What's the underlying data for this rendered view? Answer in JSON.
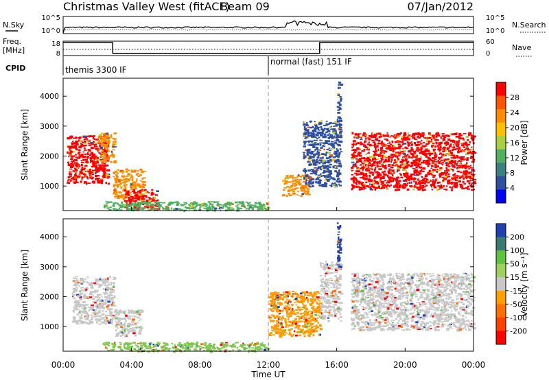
{
  "header": {
    "station": "Christmas Valley West (fitACF)",
    "beam": "Beam 09",
    "date": "07/Jan/2012"
  },
  "noise_panel": {
    "left_label": "N.Sky",
    "right_label": "N.Search",
    "left_ticks": [
      "10^5",
      "10^0"
    ],
    "right_ticks": [
      "10^5",
      "10^0"
    ]
  },
  "freq_panel": {
    "left_label_1": "Freq.",
    "left_label_2": "[MHz]",
    "left_ticks": [
      "18",
      "8"
    ],
    "right_label": "Nave",
    "right_ticks": [
      "60",
      "0"
    ],
    "freq_steps": [
      {
        "start_hour": 0.0,
        "end_hour": 2.9,
        "mhz": 17
      },
      {
        "start_hour": 2.9,
        "end_hour": 15.0,
        "mhz": 9.5
      },
      {
        "start_hour": 15.0,
        "end_hour": 24.0,
        "mhz": 17
      }
    ]
  },
  "cpid": {
    "label": "CPID",
    "segments": [
      {
        "start_hour": 0.0,
        "text": "themis 3300 IF"
      },
      {
        "start_hour": 12.0,
        "text": "normal (fast) 151 IF"
      }
    ]
  },
  "power_panel": {
    "ylabel": "Slant Range [km]",
    "yticks": [
      "4000",
      "3000",
      "2000",
      "1000"
    ],
    "colorbar_label": "Power [dB]",
    "colorbar_ticks": [
      "28",
      "24",
      "20",
      "16",
      "12",
      "8",
      "4"
    ],
    "colors": [
      "#ff0000",
      "#ff5500",
      "#ff8c00",
      "#ffc000",
      "#a8d040",
      "#50b060",
      "#3f7f7f",
      "#2f50a0",
      "#0000ff"
    ]
  },
  "velocity_panel": {
    "ylabel": "Slant Range [km]",
    "yticks": [
      "4000",
      "3000",
      "2000",
      "1000"
    ],
    "colorbar_label": "Velocity [m s⁻¹]",
    "colorbar_ticks": [
      "200",
      "100",
      "50",
      "15",
      "-15",
      "-50",
      "-100",
      "-200"
    ],
    "colors": [
      "#2040b0",
      "#3a7a70",
      "#60c040",
      "#a0d060",
      "#c8c8c8",
      "#ffa000",
      "#ff7000",
      "#ff4000",
      "#ff0000"
    ]
  },
  "x_axis": {
    "label": "Time UT",
    "ticks": [
      "00:00",
      "04:00",
      "08:00",
      "12:00",
      "16:00",
      "20:00",
      "00:00"
    ]
  },
  "chart_data": {
    "type": "heatmap",
    "title": "Christmas Valley West (fitACF) Beam 09 07/Jan/2012",
    "xlabel": "Time UT",
    "ylabel": "Slant Range [km]",
    "xlim_hours": [
      0,
      24
    ],
    "ylim_km": [
      180,
      4600
    ],
    "power_regions": [
      {
        "t0": 0.2,
        "t1": 2.6,
        "r0": 1100,
        "r1": 2700,
        "level": "red"
      },
      {
        "t0": 2.0,
        "t1": 3.0,
        "r0": 1800,
        "r1": 2800,
        "level": "orange"
      },
      {
        "t0": 2.9,
        "t1": 4.7,
        "r0": 600,
        "r1": 1600,
        "level": "orange"
      },
      {
        "t0": 3.5,
        "t1": 5.5,
        "r0": 250,
        "r1": 900,
        "level": "red"
      },
      {
        "t0": 2.3,
        "t1": 12.0,
        "r0": 200,
        "r1": 500,
        "level": "green"
      },
      {
        "t0": 12.8,
        "t1": 14.4,
        "r0": 700,
        "r1": 1400,
        "level": "orange"
      },
      {
        "t0": 14.0,
        "t1": 16.2,
        "r0": 1000,
        "r1": 3200,
        "level": "blue"
      },
      {
        "t0": 16.0,
        "t1": 16.2,
        "r0": 3000,
        "r1": 4500,
        "level": "blue"
      },
      {
        "t0": 16.8,
        "t1": 24.0,
        "r0": 900,
        "r1": 2800,
        "level": "red"
      }
    ],
    "velocity_regions": [
      {
        "t0": 0.5,
        "t1": 3.0,
        "r0": 1100,
        "r1": 2700,
        "level": "-15..15"
      },
      {
        "t0": 3.0,
        "t1": 4.6,
        "r0": 700,
        "r1": 1600,
        "level": "-15..15"
      },
      {
        "t0": 2.3,
        "t1": 12.0,
        "r0": 200,
        "r1": 500,
        "level": "15..50"
      },
      {
        "t0": 12.0,
        "t1": 15.0,
        "r0": 700,
        "r1": 2200,
        "level": "-50..-15"
      },
      {
        "t0": 15.0,
        "t1": 16.2,
        "r0": 1200,
        "r1": 3200,
        "level": "-15..15"
      },
      {
        "t0": 16.0,
        "t1": 16.2,
        "r0": 3000,
        "r1": 4500,
        "level": "100..200"
      },
      {
        "t0": 16.8,
        "t1": 24.0,
        "r0": 900,
        "r1": 2800,
        "level": "-15..15"
      }
    ]
  }
}
